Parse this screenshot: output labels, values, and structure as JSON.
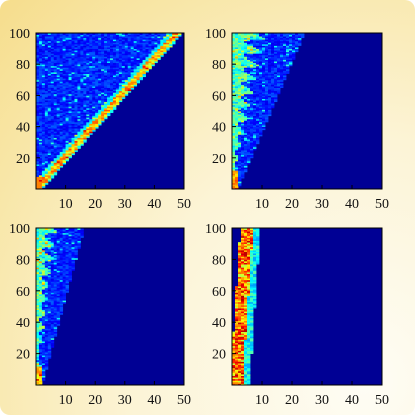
{
  "chart_data": [
    {
      "type": "heatmap",
      "pattern": "narrow-diagonal-band",
      "colormap": "jet",
      "xlim": [
        0,
        50
      ],
      "ylim": [
        0,
        100
      ],
      "xticks": [],
      "yticks": [
        20,
        40,
        60,
        80,
        100
      ],
      "band_slope": 2.1,
      "grid": false
    },
    {
      "type": "heatmap",
      "pattern": "zigzag-upper-left",
      "colormap": "jet",
      "xlim": [
        0,
        50
      ],
      "ylim": [
        0,
        100
      ],
      "xticks": [],
      "yticks": [
        20,
        40,
        60,
        80,
        100
      ],
      "band_slope": 4.5,
      "grid": false
    },
    {
      "type": "heatmap",
      "pattern": "zigzag-left",
      "colormap": "jet",
      "xlim": [
        0,
        50
      ],
      "ylim": [
        0,
        100
      ],
      "xticks": [
        10,
        20,
        30,
        40,
        50
      ],
      "yticks": [
        20,
        40,
        60,
        80,
        100
      ],
      "band_slope": 7,
      "grid": false
    },
    {
      "type": "heatmap",
      "pattern": "vertical-hot-band",
      "colormap": "jet",
      "xlim": [
        0,
        50
      ],
      "ylim": [
        0,
        100
      ],
      "xticks": [
        10,
        20,
        30,
        40,
        50
      ],
      "yticks": [
        20,
        40,
        60,
        80,
        100
      ],
      "band_slope": 0,
      "grid": false
    }
  ]
}
